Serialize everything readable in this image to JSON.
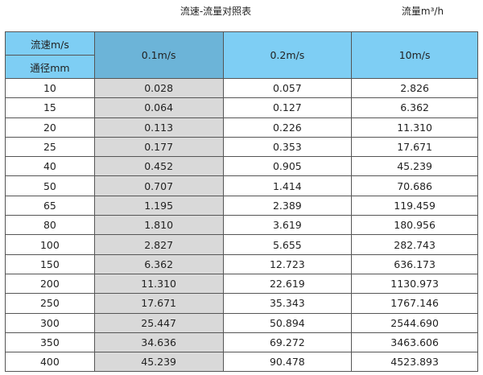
{
  "title": "流速-流量对照表",
  "unit": "流量m³/h",
  "header": {
    "velocity_label": "流速m/s",
    "diameter_label": "通径mm",
    "columns": [
      "0.1m/s",
      "0.2m/s",
      "10m/s"
    ]
  },
  "colors": {
    "header": "#7ecef4",
    "header_highlight": "#6cb4d8",
    "highlight_column": "#d9d9d9"
  },
  "rows": [
    [
      "10",
      "0.028",
      "0.057",
      "2.826"
    ],
    [
      "15",
      "0.064",
      "0.127",
      "6.362"
    ],
    [
      "20",
      "0.113",
      "0.226",
      "11.310"
    ],
    [
      "25",
      "0.177",
      "0.353",
      "17.671"
    ],
    [
      "40",
      "0.452",
      "0.905",
      "45.239"
    ],
    [
      "50",
      "0.707",
      "1.414",
      "70.686"
    ],
    [
      "65",
      "1.195",
      "2.389",
      "119.459"
    ],
    [
      "80",
      "1.810",
      "3.619",
      "180.956"
    ],
    [
      "100",
      "2.827",
      "5.655",
      "282.743"
    ],
    [
      "150",
      "6.362",
      "12.723",
      "636.173"
    ],
    [
      "200",
      "11.310",
      "22.619",
      "1130.973"
    ],
    [
      "250",
      "17.671",
      "35.343",
      "1767.146"
    ],
    [
      "300",
      "25.447",
      "50.894",
      "2544.690"
    ],
    [
      "350",
      "34.636",
      "69.272",
      "3463.606"
    ],
    [
      "400",
      "45.239",
      "90.478",
      "4523.893"
    ]
  ]
}
